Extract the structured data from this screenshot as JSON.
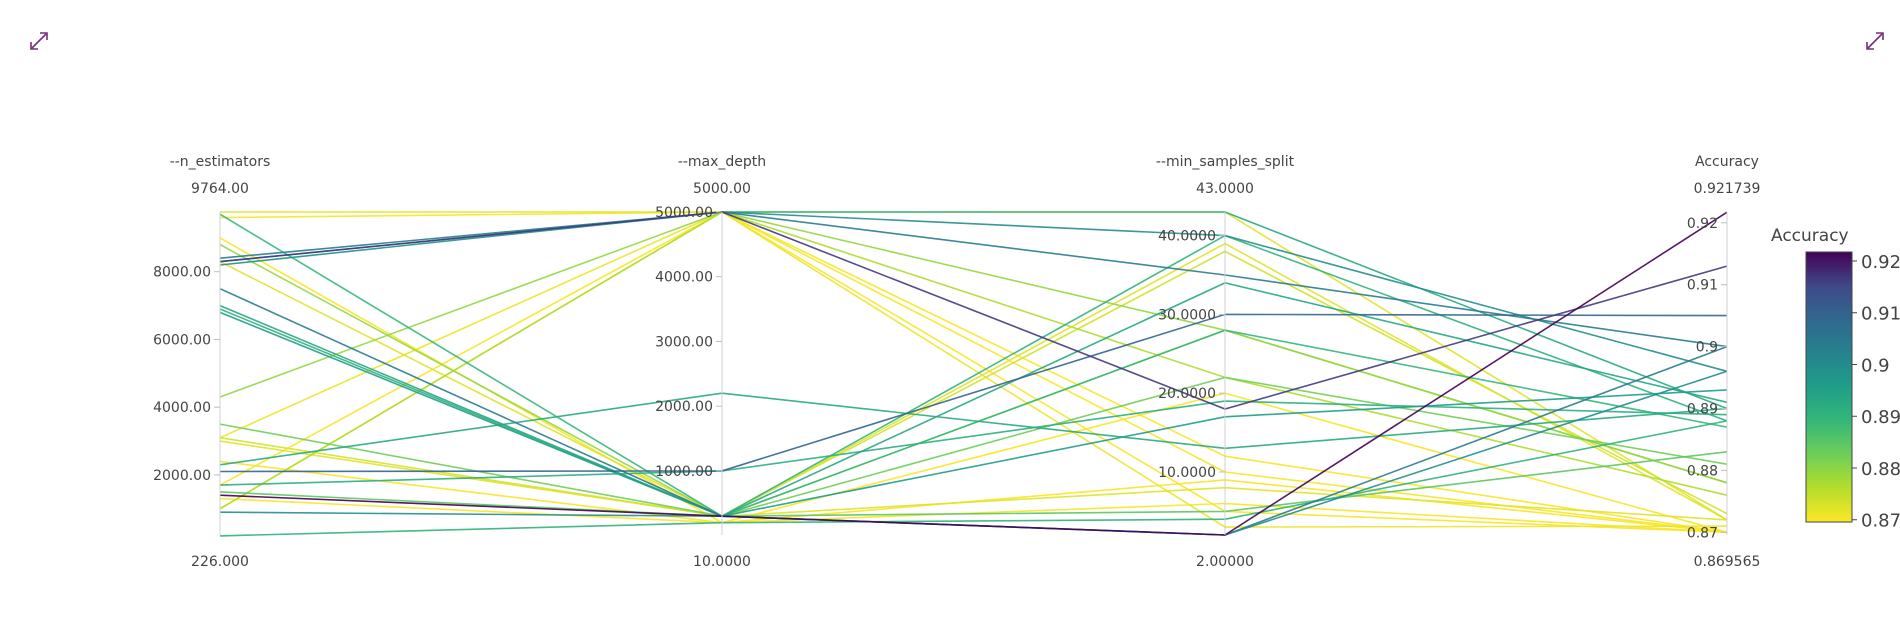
{
  "chart_data": {
    "type": "parallel_coordinates",
    "dimensions": [
      {
        "label": "--n_estimators",
        "range": [
          226,
          9764
        ],
        "range_labels": {
          "max": "9764.00",
          "min": "226.000"
        },
        "ticks": [
          {
            "v": 2000,
            "label": "2000.00"
          },
          {
            "v": 4000,
            "label": "4000.00"
          },
          {
            "v": 6000,
            "label": "6000.00"
          },
          {
            "v": 8000,
            "label": "8000.00"
          }
        ]
      },
      {
        "label": "--max_depth",
        "range": [
          10,
          5000
        ],
        "range_labels": {
          "max": "5000.00",
          "min": "10.0000"
        },
        "ticks": [
          {
            "v": 1000,
            "label": "1000.00"
          },
          {
            "v": 2000,
            "label": "2000.00"
          },
          {
            "v": 3000,
            "label": "3000.00"
          },
          {
            "v": 4000,
            "label": "4000.00"
          },
          {
            "v": 5000,
            "label": "5000.00"
          }
        ]
      },
      {
        "label": "--min_samples_split",
        "range": [
          2,
          43
        ],
        "range_labels": {
          "max": "43.0000",
          "min": "2.00000"
        },
        "ticks": [
          {
            "v": 10,
            "label": "10.0000"
          },
          {
            "v": 20,
            "label": "20.0000"
          },
          {
            "v": 30,
            "label": "30.0000"
          },
          {
            "v": 40,
            "label": "40.0000"
          }
        ]
      },
      {
        "label": "Accuracy",
        "range": [
          0.869565,
          0.921739
        ],
        "range_labels": {
          "max": "0.921739",
          "min": "0.869565"
        },
        "ticks": [
          {
            "v": 0.87,
            "label": "0.87"
          },
          {
            "v": 0.88,
            "label": "0.88"
          },
          {
            "v": 0.89,
            "label": "0.89"
          },
          {
            "v": 0.9,
            "label": "0.9"
          },
          {
            "v": 0.91,
            "label": "0.91"
          },
          {
            "v": 0.92,
            "label": "0.92"
          }
        ]
      }
    ],
    "rows": [
      [
        1400,
        300,
        2,
        0.9217
      ],
      [
        8300,
        5000,
        18,
        0.913
      ],
      [
        8400,
        5000,
        35,
        0.9
      ],
      [
        2100,
        1000,
        30,
        0.905
      ],
      [
        7500,
        300,
        2,
        0.9
      ],
      [
        8200,
        5000,
        40,
        0.896
      ],
      [
        900,
        300,
        2,
        0.896
      ],
      [
        6800,
        300,
        17,
        0.893
      ],
      [
        2300,
        2200,
        13,
        0.89
      ],
      [
        7000,
        300,
        34,
        0.891
      ],
      [
        1700,
        1000,
        19,
        0.889
      ],
      [
        200,
        200,
        4,
        0.888
      ],
      [
        6900,
        300,
        40,
        0.888
      ],
      [
        8300,
        5000,
        43,
        0.89
      ],
      [
        9700,
        300,
        28,
        0.887
      ],
      [
        3500,
        300,
        22,
        0.881
      ],
      [
        1500,
        300,
        5,
        0.883
      ],
      [
        8800,
        300,
        28,
        0.878
      ],
      [
        4300,
        5000,
        28,
        0.878
      ],
      [
        1000,
        5000,
        22,
        0.876
      ],
      [
        9764,
        5000,
        43,
        0.872
      ],
      [
        3100,
        300,
        38,
        0.873
      ],
      [
        2400,
        200,
        20,
        0.87
      ],
      [
        1700,
        5000,
        12,
        0.87
      ],
      [
        3100,
        5000,
        3,
        0.871
      ],
      [
        9600,
        5000,
        10,
        0.87
      ],
      [
        1000,
        5000,
        5,
        0.87
      ],
      [
        3000,
        300,
        8,
        0.872
      ],
      [
        8300,
        300,
        39,
        0.872
      ],
      [
        1300,
        200,
        9,
        0.87
      ],
      [
        9000,
        200,
        6,
        0.87
      ]
    ],
    "colorscale": "viridis_reversed",
    "color_dimension": "Accuracy",
    "colorbar": {
      "title": "Accuracy",
      "ticks": [
        "0.87",
        "0.88",
        "0.89",
        "0.9",
        "0.91",
        "0.92"
      ],
      "range": [
        0.869565,
        0.921739
      ]
    }
  }
}
